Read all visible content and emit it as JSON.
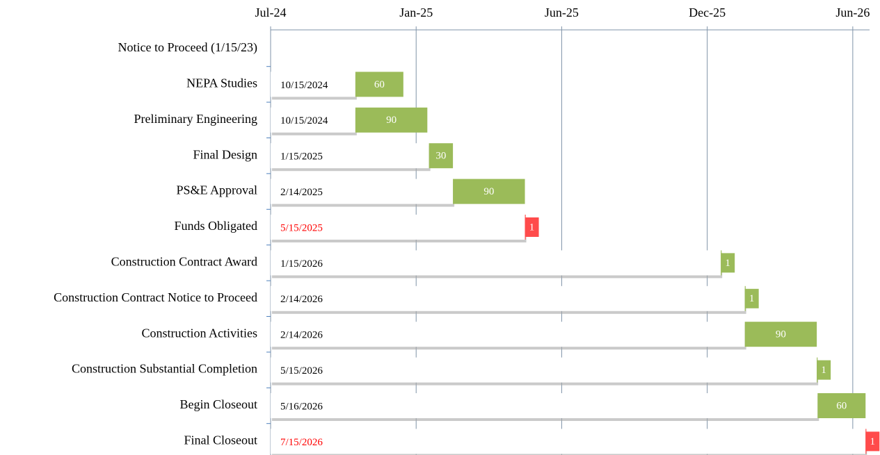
{
  "chart_data": {
    "type": "gantt",
    "categories": [
      "Notice to Proceed (1/15/23)",
      "NEPA Studies",
      "Preliminary Engineering",
      "Final Design",
      "PS&E Approval",
      "Funds Obligated",
      "Construction Contract Award",
      "Construction Contract Notice to Proceed",
      "Construction Activities",
      "Construction Substantial Completion",
      "Begin Closeout",
      "Final Closeout"
    ],
    "start": [
      null,
      "10/15/2024",
      "10/15/2024",
      "1/15/2025",
      "2/14/2025",
      "5/15/2025",
      "1/15/2026",
      "2/14/2026",
      "2/14/2026",
      "5/15/2026",
      "5/16/2026",
      "7/15/2026"
    ],
    "start_label_colors": [
      null,
      "#000000",
      "#000000",
      "#000000",
      "#000000",
      "#ff0000",
      "#000000",
      "#000000",
      "#000000",
      "#000000",
      "#000000",
      "#ff0000"
    ],
    "values": [
      null,
      60,
      90,
      30,
      90,
      1,
      1,
      1,
      90,
      1,
      60,
      1
    ],
    "colors": [
      null,
      "#9bbb59",
      "#9bbb59",
      "#9bbb59",
      "#9bbb59",
      "#ff4b4b",
      "#9bbb59",
      "#9bbb59",
      "#9bbb59",
      "#9bbb59",
      "#9bbb59",
      "#ff4b4b"
    ],
    "xlim": [
      "2024-07-01",
      "2026-07-20"
    ],
    "xticks": [
      {
        "value": "2024-07-01",
        "label": "Jul-24"
      },
      {
        "value": "2024-12-30",
        "label": "Jan-25"
      },
      {
        "value": "2025-06-30",
        "label": "Jun-25"
      },
      {
        "value": "2025-12-29",
        "label": "Dec-25"
      },
      {
        "value": "2026-06-29",
        "label": "Jun-26"
      }
    ],
    "grid": true
  }
}
